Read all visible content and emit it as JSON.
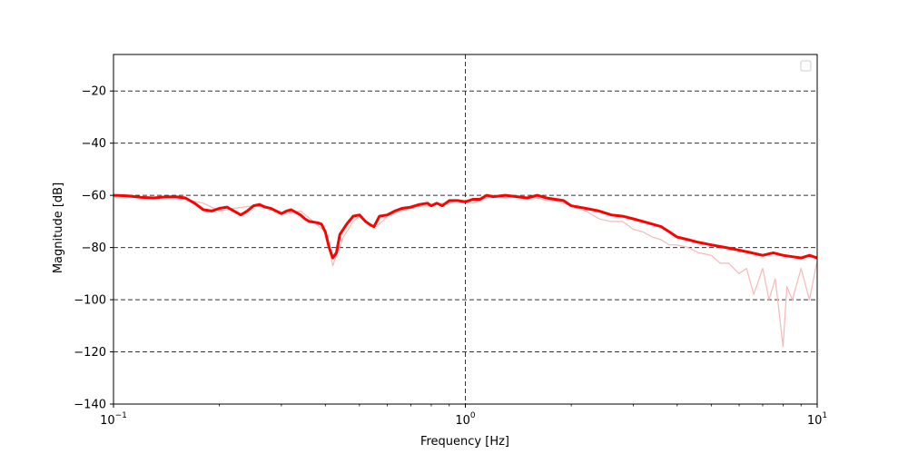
{
  "chart_data": {
    "type": "line",
    "title": "",
    "xlabel": "Frequency [Hz]",
    "ylabel": "Magnitude [dB]",
    "x_scale": "log",
    "xlim": [
      0.1,
      10
    ],
    "ylim": [
      -140,
      -6
    ],
    "x_ticks": [
      {
        "value": 0.1,
        "base": "10",
        "exp": "−1"
      },
      {
        "value": 1,
        "base": "10",
        "exp": "0"
      },
      {
        "value": 10,
        "base": "10",
        "exp": "1"
      }
    ],
    "y_ticks": [
      {
        "value": -20,
        "label": "−20"
      },
      {
        "value": -40,
        "label": "−40"
      },
      {
        "value": -60,
        "label": "−60"
      },
      {
        "value": -80,
        "label": "−80"
      },
      {
        "value": -100,
        "label": "−100"
      },
      {
        "value": -120,
        "label": "−120"
      },
      {
        "value": -140,
        "label": "−140"
      }
    ],
    "grid": true,
    "legend": {
      "placement": "top-right",
      "entries": []
    },
    "colors": {
      "main": "#ff0000",
      "raw": "#f6b8b8",
      "grid": "#333333"
    },
    "series": [
      {
        "style": "raw",
        "x": [
          0.1,
          0.12,
          0.14,
          0.16,
          0.18,
          0.2,
          0.22,
          0.25,
          0.28,
          0.31,
          0.34,
          0.37,
          0.4,
          0.42,
          0.43,
          0.45,
          0.48,
          0.5,
          0.53,
          0.56,
          0.6,
          0.65,
          0.7,
          0.75,
          0.8,
          0.85,
          0.9,
          0.95,
          1.0,
          1.05,
          1.1,
          1.2,
          1.3,
          1.4,
          1.5,
          1.6,
          1.7,
          1.8,
          2.0,
          2.2,
          2.4,
          2.6,
          2.8,
          3.0,
          3.2,
          3.4,
          3.6,
          3.8,
          4.0,
          4.3,
          4.6,
          5.0,
          5.3,
          5.6,
          6.0,
          6.3,
          6.6,
          7.0,
          7.3,
          7.6,
          8.0,
          8.2,
          8.5,
          9.0,
          9.5,
          10.0
        ],
        "y": [
          -60,
          -60.5,
          -61,
          -61.5,
          -63,
          -66,
          -65,
          -64,
          -65,
          -67,
          -66,
          -70,
          -74,
          -87,
          -83,
          -76,
          -70,
          -68,
          -71,
          -72,
          -68,
          -66,
          -65,
          -64,
          -64,
          -63,
          -63,
          -62,
          -62,
          -63,
          -62,
          -60,
          -61,
          -60,
          -61,
          -61,
          -62,
          -62,
          -64,
          -66,
          -69,
          -70,
          -70,
          -73,
          -74,
          -76,
          -77,
          -79,
          -79,
          -80,
          -82,
          -83,
          -86,
          -86,
          -90,
          -88,
          -98,
          -88,
          -100,
          -92,
          -118,
          -95,
          -100,
          -88,
          -100,
          -85
        ]
      },
      {
        "style": "main",
        "x": [
          0.1,
          0.11,
          0.12,
          0.13,
          0.14,
          0.15,
          0.16,
          0.17,
          0.18,
          0.19,
          0.2,
          0.21,
          0.22,
          0.23,
          0.24,
          0.25,
          0.26,
          0.27,
          0.28,
          0.3,
          0.31,
          0.32,
          0.34,
          0.35,
          0.36,
          0.38,
          0.39,
          0.4,
          0.41,
          0.42,
          0.43,
          0.44,
          0.46,
          0.48,
          0.5,
          0.52,
          0.54,
          0.55,
          0.57,
          0.6,
          0.63,
          0.66,
          0.7,
          0.74,
          0.78,
          0.8,
          0.83,
          0.86,
          0.9,
          0.95,
          1.0,
          1.05,
          1.1,
          1.15,
          1.2,
          1.3,
          1.4,
          1.5,
          1.6,
          1.7,
          1.8,
          1.9,
          2.0,
          2.2,
          2.4,
          2.6,
          2.8,
          3.0,
          3.2,
          3.4,
          3.6,
          3.8,
          4.0,
          4.3,
          4.6,
          5.0,
          5.5,
          6.0,
          6.5,
          7.0,
          7.5,
          8.0,
          8.5,
          9.0,
          9.5,
          10.0
        ],
        "y": [
          -60,
          -60.2,
          -60.8,
          -61,
          -60.6,
          -60.5,
          -61,
          -63,
          -65.5,
          -66,
          -65,
          -64.5,
          -66,
          -67.5,
          -66,
          -64,
          -63.5,
          -64.5,
          -65,
          -67,
          -66,
          -65.5,
          -67.5,
          -69,
          -70,
          -70.5,
          -71,
          -74,
          -80,
          -84,
          -82,
          -75,
          -71,
          -68,
          -67.5,
          -70,
          -71.5,
          -72,
          -68,
          -67.5,
          -66,
          -65,
          -64.5,
          -63.5,
          -63,
          -64,
          -63,
          -64,
          -62,
          -62,
          -62.5,
          -61.5,
          -61.5,
          -60,
          -60.5,
          -60,
          -60.5,
          -61,
          -60,
          -61,
          -61.5,
          -62,
          -64,
          -65,
          -66,
          -67.5,
          -68,
          -69,
          -70,
          -71,
          -72,
          -74,
          -76,
          -77,
          -78,
          -79,
          -80,
          -81,
          -82,
          -83,
          -82,
          -83,
          -83.5,
          -84,
          -83,
          -84
        ]
      }
    ]
  }
}
